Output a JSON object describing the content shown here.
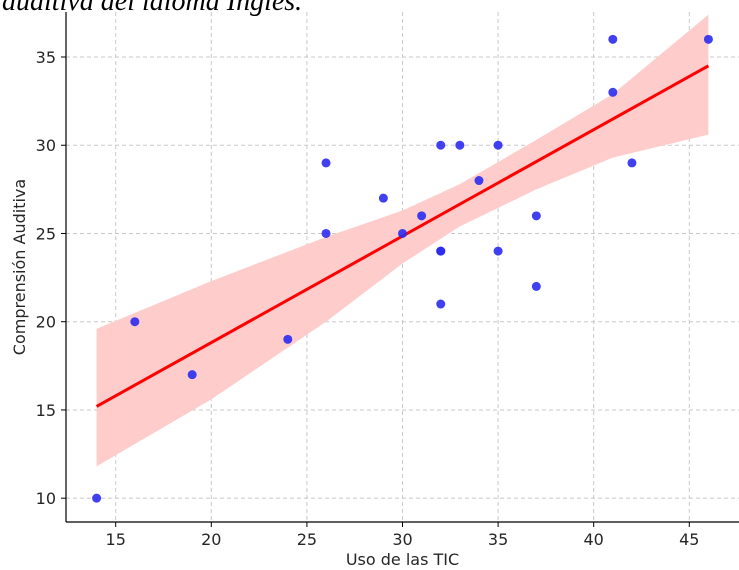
{
  "caption": "auditiva del idioma Inglés.",
  "chart_data": {
    "type": "scatter",
    "title": "",
    "xlabel": "Uso de las TIC",
    "ylabel": "Comprensión Auditiva",
    "xlim": [
      12.4,
      47.6
    ],
    "ylim": [
      8.65,
      37.55
    ],
    "xticks": [
      15,
      20,
      25,
      30,
      35,
      40,
      45
    ],
    "yticks": [
      10,
      15,
      20,
      25,
      30,
      35
    ],
    "grid": true,
    "points": [
      {
        "x": 14,
        "y": 10
      },
      {
        "x": 16,
        "y": 20
      },
      {
        "x": 19,
        "y": 17
      },
      {
        "x": 24,
        "y": 19
      },
      {
        "x": 26,
        "y": 29
      },
      {
        "x": 26,
        "y": 25
      },
      {
        "x": 29,
        "y": 27
      },
      {
        "x": 30,
        "y": 25
      },
      {
        "x": 31,
        "y": 26
      },
      {
        "x": 32,
        "y": 30
      },
      {
        "x": 32,
        "y": 24
      },
      {
        "x": 32,
        "y": 24
      },
      {
        "x": 32,
        "y": 21
      },
      {
        "x": 33,
        "y": 30
      },
      {
        "x": 34,
        "y": 28
      },
      {
        "x": 35,
        "y": 30
      },
      {
        "x": 35,
        "y": 24
      },
      {
        "x": 37,
        "y": 26
      },
      {
        "x": 37,
        "y": 22
      },
      {
        "x": 41,
        "y": 36
      },
      {
        "x": 41,
        "y": 33
      },
      {
        "x": 42,
        "y": 29
      },
      {
        "x": 46,
        "y": 36
      }
    ],
    "regression_line": {
      "x": [
        14,
        46
      ],
      "y": [
        15.2,
        34.5
      ]
    },
    "confidence_band": {
      "x": [
        14,
        20,
        26,
        30,
        33,
        37,
        41,
        46
      ],
      "upper": [
        19.6,
        22.3,
        24.8,
        26.3,
        27.8,
        30.3,
        32.9,
        37.4
      ],
      "lower": [
        11.8,
        15.6,
        20.0,
        23.3,
        25.4,
        27.5,
        29.3,
        30.6
      ]
    },
    "colors": {
      "points": "#2b2bf0",
      "line": "#ff0000",
      "band": "#ffcccc",
      "grid": "#c8c8c8",
      "axis": "#000000"
    }
  }
}
